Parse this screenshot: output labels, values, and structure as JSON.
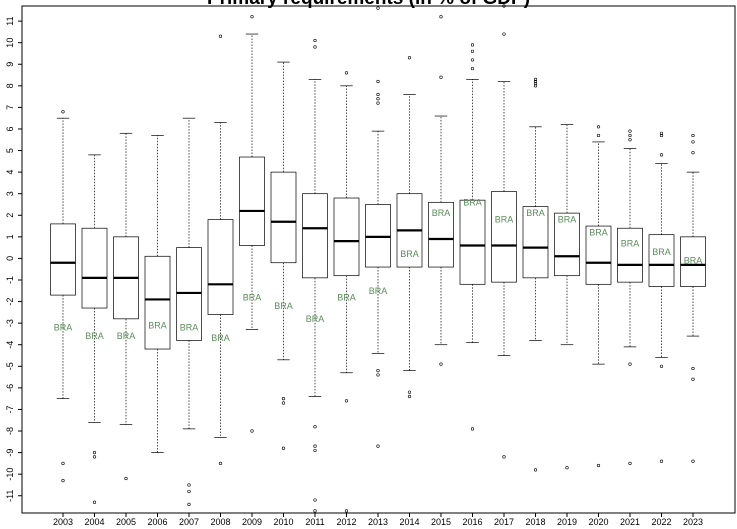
{
  "chart_data": {
    "type": "box",
    "title": "Primary requirements (in % of GDP)",
    "xlabel": "",
    "ylabel": "",
    "ylim": [
      -11.8,
      11.7
    ],
    "y_ticks": [
      -11,
      -10,
      -9,
      -8,
      -7,
      -6,
      -5,
      -4,
      -3,
      -2,
      -1,
      0,
      1,
      2,
      3,
      4,
      5,
      6,
      7,
      8,
      9,
      10,
      11
    ],
    "grid": false,
    "highlight_label": "BRA",
    "highlight_color": "#5b8c5a",
    "categories": [
      "2003",
      "2004",
      "2005",
      "2006",
      "2007",
      "2008",
      "2009",
      "2010",
      "2011",
      "2012",
      "2013",
      "2014",
      "2015",
      "2016",
      "2017",
      "2018",
      "2019",
      "2020",
      "2021",
      "2022",
      "2023"
    ],
    "boxes": [
      {
        "year": "2003",
        "whisker_low": -6.5,
        "q1": -1.7,
        "median": -0.2,
        "q3": 1.6,
        "whisker_high": 6.5,
        "outliers": [
          6.8,
          -9.5,
          -10.3
        ],
        "highlight": -3.2
      },
      {
        "year": "2004",
        "whisker_low": -7.6,
        "q1": -2.3,
        "median": -0.9,
        "q3": 1.4,
        "whisker_high": 4.8,
        "outliers": [
          -9.0,
          -9.2,
          -11.3
        ],
        "highlight": -3.6
      },
      {
        "year": "2005",
        "whisker_low": -7.7,
        "q1": -2.8,
        "median": -0.9,
        "q3": 1.0,
        "whisker_high": 5.8,
        "outliers": [
          -10.2
        ],
        "highlight": -3.6
      },
      {
        "year": "2006",
        "whisker_low": -9.0,
        "q1": -4.2,
        "median": -1.9,
        "q3": 0.1,
        "whisker_high": 5.7,
        "outliers": [],
        "highlight": -3.1
      },
      {
        "year": "2007",
        "whisker_low": -7.9,
        "q1": -3.8,
        "median": -1.6,
        "q3": 0.5,
        "whisker_high": 6.5,
        "outliers": [
          -10.5,
          -10.8,
          -11.4
        ],
        "highlight": -3.2
      },
      {
        "year": "2008",
        "whisker_low": -8.3,
        "q1": -2.6,
        "median": -1.2,
        "q3": 1.8,
        "whisker_high": 6.3,
        "outliers": [
          10.3,
          -9.5
        ],
        "highlight": -3.7
      },
      {
        "year": "2009",
        "whisker_low": -3.3,
        "q1": 0.6,
        "median": 2.2,
        "q3": 4.7,
        "whisker_high": 10.4,
        "outliers": [
          11.2,
          -8.0
        ],
        "highlight": -1.8
      },
      {
        "year": "2010",
        "whisker_low": -4.7,
        "q1": -0.2,
        "median": 1.7,
        "q3": 4.0,
        "whisker_high": 9.1,
        "outliers": [
          -6.5,
          -6.7,
          -8.8
        ],
        "highlight": -2.2
      },
      {
        "year": "2011",
        "whisker_low": -6.4,
        "q1": -0.9,
        "median": 1.4,
        "q3": 3.0,
        "whisker_high": 8.3,
        "outliers": [
          10.1,
          9.8,
          -7.8,
          -8.7,
          -8.9,
          -11.2,
          -11.7
        ],
        "highlight": -2.8
      },
      {
        "year": "2012",
        "whisker_low": -5.3,
        "q1": -0.8,
        "median": 0.8,
        "q3": 2.8,
        "whisker_high": 8.0,
        "outliers": [
          8.6,
          -6.6,
          -11.7
        ],
        "highlight": -1.8
      },
      {
        "year": "2013",
        "whisker_low": -4.4,
        "q1": -0.4,
        "median": 1.0,
        "q3": 2.5,
        "whisker_high": 5.9,
        "outliers": [
          11.6,
          8.2,
          7.6,
          7.4,
          7.2,
          -5.2,
          -5.4,
          -8.7
        ],
        "highlight": -1.5
      },
      {
        "year": "2014",
        "whisker_low": -5.2,
        "q1": -0.4,
        "median": 1.3,
        "q3": 3.0,
        "whisker_high": 7.6,
        "outliers": [
          9.3,
          -6.2,
          -6.4
        ],
        "highlight": 0.2
      },
      {
        "year": "2015",
        "whisker_low": -4.0,
        "q1": -0.4,
        "median": 0.9,
        "q3": 2.6,
        "whisker_high": 6.6,
        "outliers": [
          11.2,
          8.4,
          -4.9
        ],
        "highlight": 2.1
      },
      {
        "year": "2016",
        "whisker_low": -3.9,
        "q1": -1.2,
        "median": 0.6,
        "q3": 2.7,
        "whisker_high": 8.3,
        "outliers": [
          9.9,
          9.6,
          9.2,
          8.8,
          -7.9
        ],
        "highlight": 2.6
      },
      {
        "year": "2017",
        "whisker_low": -4.5,
        "q1": -1.1,
        "median": 0.6,
        "q3": 3.1,
        "whisker_high": 8.2,
        "outliers": [
          11.7,
          10.4,
          -9.2
        ],
        "highlight": 1.8
      },
      {
        "year": "2018",
        "whisker_low": -3.8,
        "q1": -0.9,
        "median": 0.5,
        "q3": 2.4,
        "whisker_high": 6.1,
        "outliers": [
          8.3,
          8.2,
          8.1,
          8.0,
          -9.8
        ],
        "highlight": 2.1
      },
      {
        "year": "2019",
        "whisker_low": -4.0,
        "q1": -0.8,
        "median": 0.1,
        "q3": 2.1,
        "whisker_high": 6.2,
        "outliers": [
          -9.7
        ],
        "highlight": 1.8
      },
      {
        "year": "2020",
        "whisker_low": -4.9,
        "q1": -1.2,
        "median": -0.2,
        "q3": 1.5,
        "whisker_high": 5.4,
        "outliers": [
          6.1,
          5.7,
          -9.6
        ],
        "highlight": 1.2
      },
      {
        "year": "2021",
        "whisker_low": -4.1,
        "q1": -1.1,
        "median": -0.3,
        "q3": 1.4,
        "whisker_high": 5.1,
        "outliers": [
          5.9,
          5.7,
          5.5,
          -4.9,
          -9.5
        ],
        "highlight": 0.7
      },
      {
        "year": "2022",
        "whisker_low": -4.6,
        "q1": -1.3,
        "median": -0.3,
        "q3": 1.1,
        "whisker_high": 4.4,
        "outliers": [
          5.8,
          5.7,
          4.8,
          -5.0,
          -9.4
        ],
        "highlight": 0.3
      },
      {
        "year": "2023",
        "whisker_low": -3.6,
        "q1": -1.3,
        "median": -0.3,
        "q3": 1.0,
        "whisker_high": 4.0,
        "outliers": [
          5.7,
          5.4,
          4.9,
          -5.1,
          -5.6,
          -9.4
        ],
        "highlight": -0.1
      }
    ]
  }
}
